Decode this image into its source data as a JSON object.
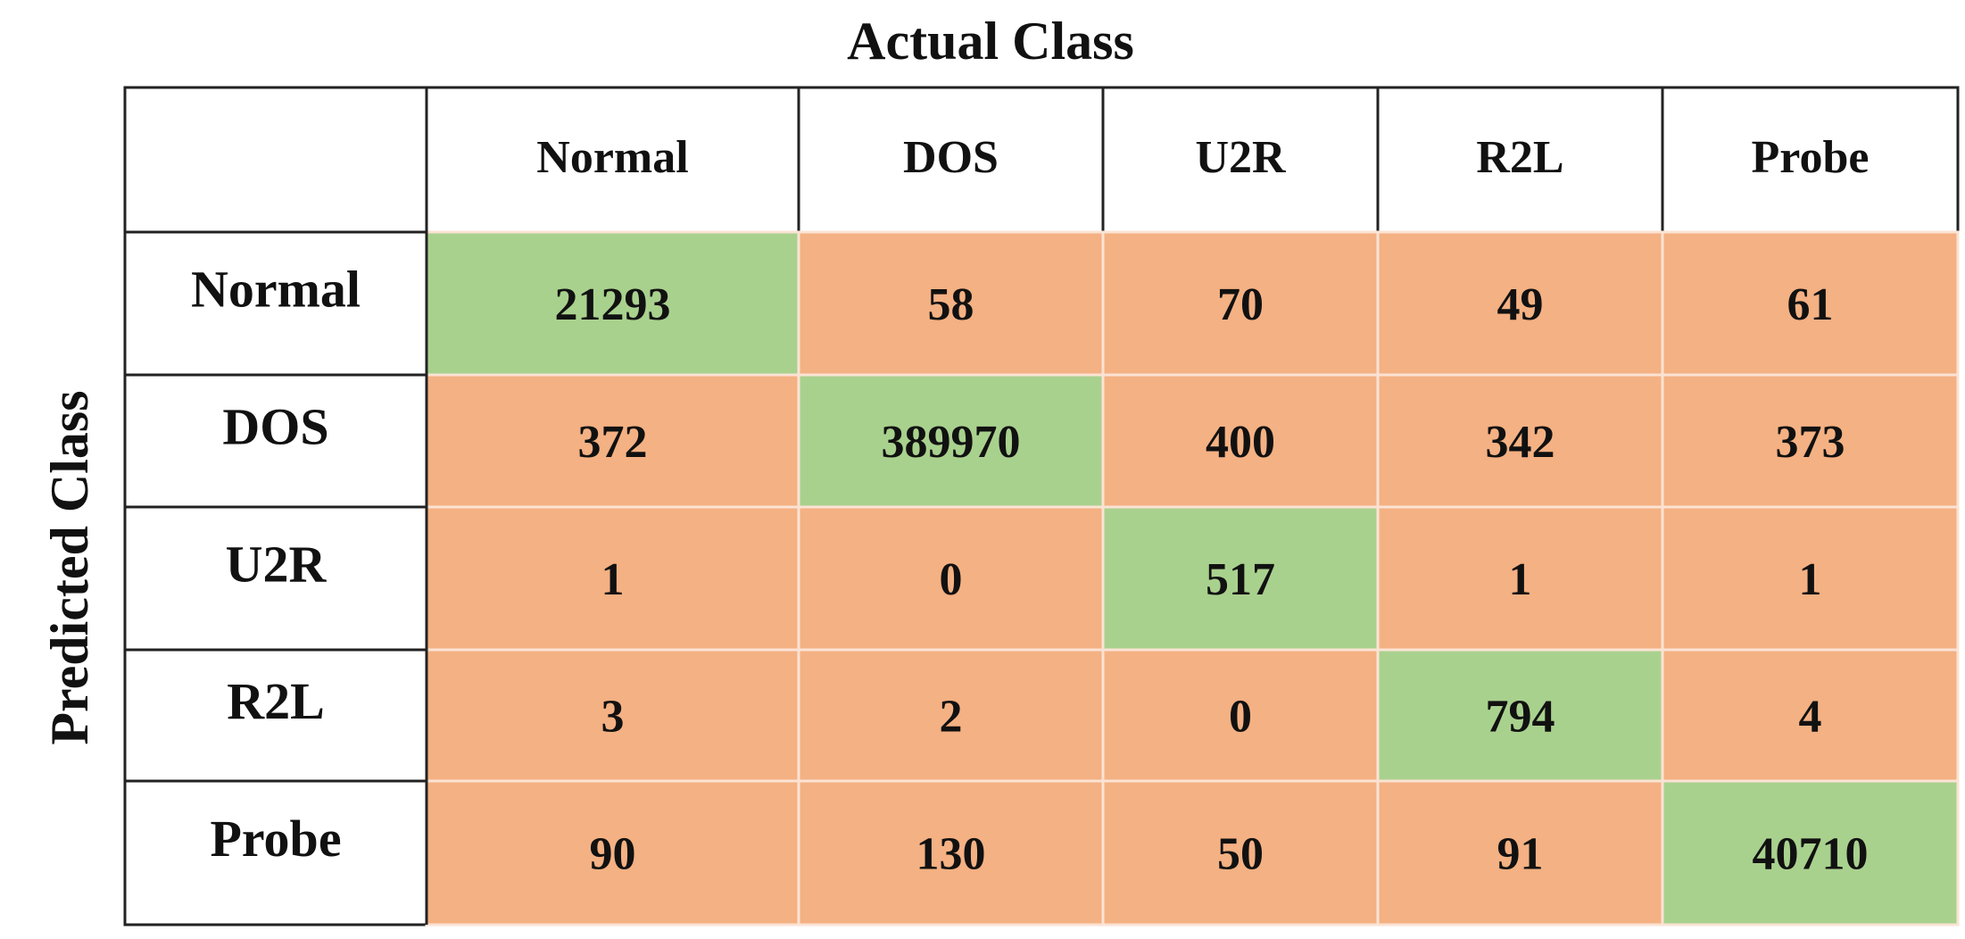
{
  "title": "Actual Class",
  "row_axis_label": "Predicted Class",
  "table": {
    "columns": [
      "Normal",
      "DOS",
      "U2R",
      "R2L",
      "Probe"
    ],
    "rows": [
      {
        "label": "Normal",
        "cells": [
          21293,
          58,
          70,
          49,
          61
        ]
      },
      {
        "label": "DOS",
        "cells": [
          372,
          389970,
          400,
          342,
          373
        ]
      },
      {
        "label": "U2R",
        "cells": [
          1,
          0,
          517,
          1,
          1
        ]
      },
      {
        "label": "R2L",
        "cells": [
          3,
          2,
          0,
          794,
          4
        ]
      },
      {
        "label": "Probe",
        "cells": [
          90,
          130,
          50,
          91,
          40710
        ]
      }
    ]
  }
}
